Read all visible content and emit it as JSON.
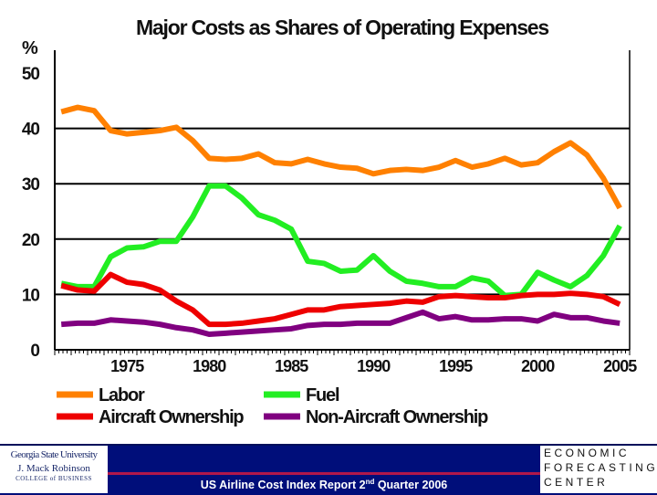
{
  "chart_data": {
    "type": "line",
    "title": "Major Costs as Shares of Operating Expenses",
    "ylabel": "%",
    "ylim": [
      0,
      50
    ],
    "yticks": [
      0,
      10,
      20,
      30,
      40,
      50
    ],
    "xlim": [
      1971,
      2005
    ],
    "xticks": [
      1975,
      1980,
      1985,
      1990,
      1995,
      2000,
      2005
    ],
    "grid": "horizontal",
    "legend_placement": "bottom",
    "x": [
      1971,
      1972,
      1973,
      1974,
      1975,
      1976,
      1977,
      1978,
      1979,
      1980,
      1981,
      1982,
      1983,
      1984,
      1985,
      1986,
      1987,
      1988,
      1989,
      1990,
      1991,
      1992,
      1993,
      1994,
      1995,
      1996,
      1997,
      1998,
      1999,
      2000,
      2001,
      2002,
      2003,
      2004,
      2005
    ],
    "series": [
      {
        "name": "Labor",
        "color": "#ff8000",
        "values": [
          43,
          43.8,
          43.2,
          39.6,
          39,
          39.3,
          39.6,
          40.2,
          37.8,
          34.6,
          34.4,
          34.6,
          35.4,
          33.8,
          33.6,
          34.4,
          33.6,
          33,
          32.8,
          31.8,
          32.4,
          32.6,
          32.4,
          33,
          34.2,
          33,
          33.6,
          34.6,
          33.4,
          33.8,
          35.8,
          37.4,
          35.2,
          31,
          25.6
        ]
      },
      {
        "name": "Fuel",
        "color": "#22ee22",
        "values": [
          12,
          11.4,
          11.4,
          16.8,
          18.4,
          18.6,
          19.6,
          19.6,
          24,
          29.6,
          29.6,
          27.4,
          24.4,
          23.4,
          21.8,
          16,
          15.6,
          14.2,
          14.4,
          17,
          14.2,
          12.4,
          12,
          11.4,
          11.4,
          13,
          12.4,
          9.8,
          10,
          14,
          12.6,
          11.4,
          13.4,
          17,
          22.4
        ]
      },
      {
        "name": "Aircraft Ownership",
        "color": "#ee0000",
        "values": [
          11.6,
          10.8,
          10.6,
          13.6,
          12.2,
          11.8,
          10.8,
          8.8,
          7.2,
          4.6,
          4.6,
          4.8,
          5.2,
          5.6,
          6.4,
          7.2,
          7.2,
          7.8,
          8,
          8.2,
          8.4,
          8.8,
          8.6,
          9.6,
          9.8,
          9.6,
          9.4,
          9.4,
          9.8,
          10,
          10,
          10.2,
          10,
          9.6,
          8.2
        ]
      },
      {
        "name": "Non-Aircraft Ownership",
        "color": "#800080",
        "values": [
          4.6,
          4.8,
          4.8,
          5.4,
          5.2,
          5,
          4.6,
          4,
          3.6,
          2.8,
          3,
          3.2,
          3.4,
          3.6,
          3.8,
          4.4,
          4.6,
          4.6,
          4.8,
          4.8,
          4.8,
          5.8,
          6.8,
          5.6,
          6,
          5.4,
          5.4,
          5.6,
          5.6,
          5.2,
          6.4,
          5.8,
          5.8,
          5.2,
          4.8
        ]
      }
    ]
  },
  "footer": {
    "report_text": "US Airline Cost Index Report 2",
    "report_sup": "nd",
    "report_tail": " Quarter 2006",
    "left_logo": [
      "Georgia State University",
      "J. Mack Robinson",
      "COLLEGE of BUSINESS"
    ],
    "right_logo": [
      "ECONOMIC",
      "FORECASTING",
      "CENTER"
    ],
    "footer_color": "#000e7a"
  }
}
